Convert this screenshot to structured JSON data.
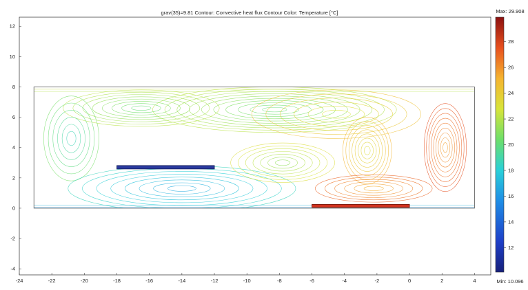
{
  "chart_data": {
    "type": "contour",
    "title": "grav(35)=9.81   Contour: Convective heat flux   Contour Color: Temperature [°C]",
    "xlim": [
      -24,
      5
    ],
    "ylim": [
      -4.4,
      12.6
    ],
    "xticks": [
      -24,
      -22,
      -20,
      -18,
      -16,
      -14,
      -12,
      -10,
      -8,
      -6,
      -4,
      -2,
      0,
      2,
      4
    ],
    "yticks": [
      -4,
      -2,
      0,
      2,
      4,
      6,
      8,
      10,
      12
    ],
    "domain": {
      "x": [
        -23.1,
        4.0
      ],
      "y": [
        0.0,
        8.0
      ]
    },
    "cold_plate": {
      "x": [
        -18.0,
        -12.0
      ],
      "y": 2.7
    },
    "hot_plate": {
      "x": [
        -6.0,
        0.0
      ],
      "y": 0.15
    },
    "colorbar": {
      "max_label": "Max: 29.908",
      "min_label": "Min: 10.096",
      "min": 10.096,
      "max": 29.908,
      "ticks": [
        12,
        14,
        16,
        18,
        20,
        22,
        24,
        26,
        28
      ]
    },
    "contour_regions": [
      {
        "cx": -8.3,
        "cy": 6.5,
        "rx": 7.5,
        "ry": 1.5,
        "levels": 10,
        "temp": 21
      },
      {
        "cx": -16.5,
        "cy": 6.6,
        "rx": 4.8,
        "ry": 1.2,
        "levels": 8,
        "temp": 21
      },
      {
        "cx": -20.8,
        "cy": 4.6,
        "rx": 1.7,
        "ry": 2.8,
        "levels": 6,
        "temp": 19.5
      },
      {
        "cx": -14.0,
        "cy": 1.3,
        "rx": 7.0,
        "ry": 1.5,
        "levels": 8,
        "temp": 17.5
      },
      {
        "cx": -7.8,
        "cy": 3.0,
        "rx": 3.2,
        "ry": 1.3,
        "levels": 7,
        "temp": 22
      },
      {
        "cx": -2.6,
        "cy": 3.8,
        "rx": 1.5,
        "ry": 2.2,
        "levels": 8,
        "temp": 24
      },
      {
        "cx": -2.2,
        "cy": 1.3,
        "rx": 3.6,
        "ry": 0.9,
        "levels": 6,
        "temp": 26
      },
      {
        "cx": 2.2,
        "cy": 4.0,
        "rx": 1.3,
        "ry": 2.9,
        "levels": 9,
        "temp": 26.5
      },
      {
        "cx": -4.5,
        "cy": 6.2,
        "rx": 5.2,
        "ry": 1.6,
        "levels": 6,
        "temp": 23.5
      }
    ]
  }
}
